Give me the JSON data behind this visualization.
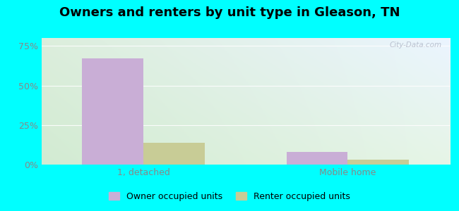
{
  "title": "Owners and renters by unit type in Gleason, TN",
  "categories": [
    "1, detached",
    "Mobile home"
  ],
  "owner_values": [
    67.0,
    8.0
  ],
  "renter_values": [
    14.0,
    3.0
  ],
  "owner_color": "#c9aed6",
  "renter_color": "#c8cc96",
  "yticks": [
    0,
    25,
    50,
    75
  ],
  "ytick_labels": [
    "0%",
    "25%",
    "50%",
    "75%"
  ],
  "ylim": [
    0,
    80
  ],
  "bar_width": 0.3,
  "legend_owner": "Owner occupied units",
  "legend_renter": "Renter occupied units",
  "bg_color_topleft": "#d8ecd8",
  "bg_color_topright": "#ddeeff",
  "bg_color_bottomleft": "#e8f5e8",
  "bg_color_bottomright": "#eef4ff",
  "outer_bg": "#00ffff",
  "title_fontsize": 13,
  "axis_fontsize": 9,
  "legend_fontsize": 9,
  "watermark_text": "City-Data.com",
  "gridline_color": "#cccccc",
  "tick_color": "#888888"
}
